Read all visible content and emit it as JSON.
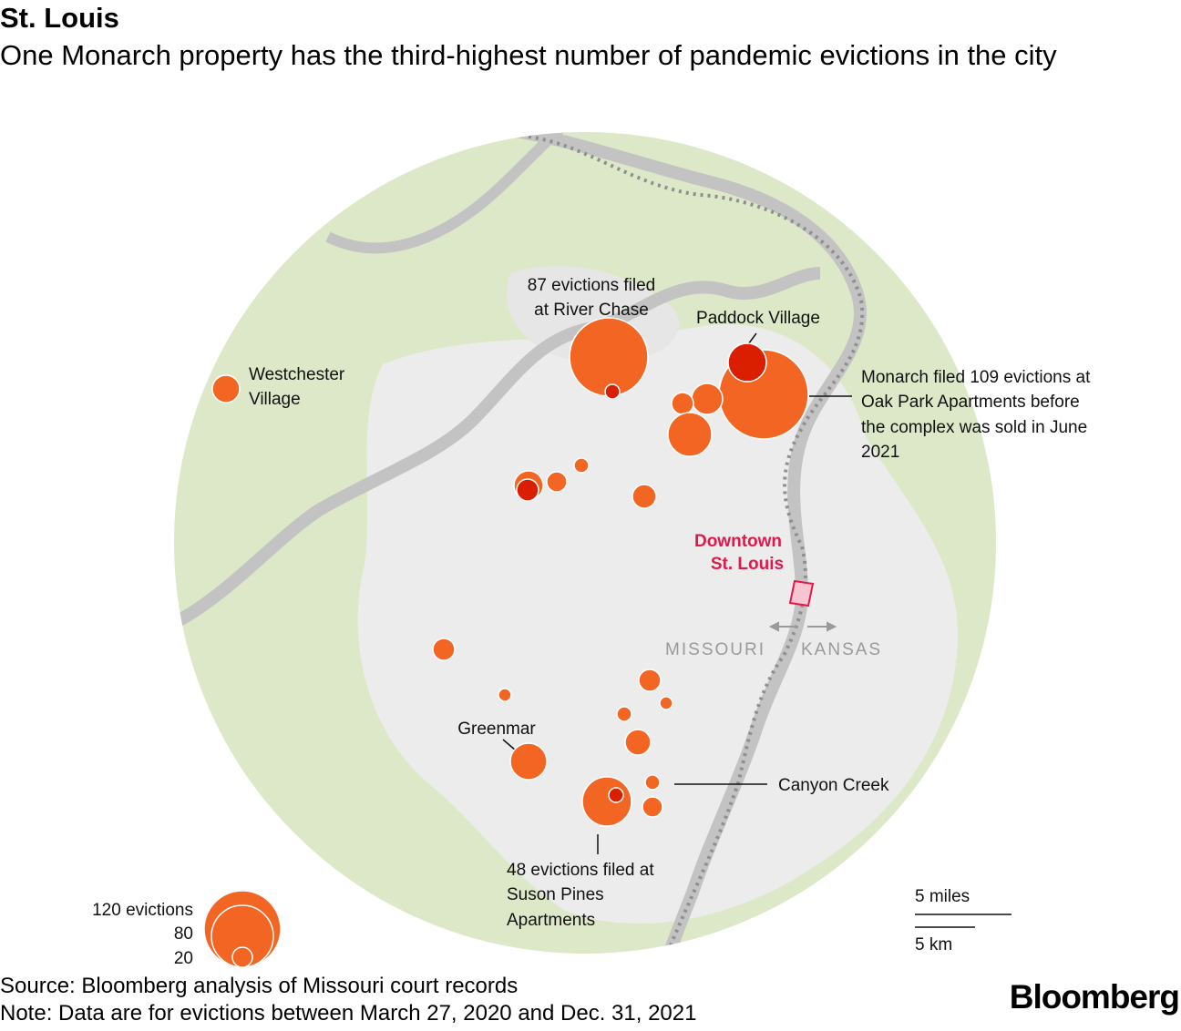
{
  "title": "St. Louis",
  "subtitle": "One Monarch property has the third-highest number of pandemic evictions in the city",
  "source": "Source: Bloomberg analysis of Missouri court records",
  "note": "Note: Data are for evictions between March 27, 2020 and Dec. 31, 2021",
  "logo": "Bloomberg",
  "colors": {
    "land": "#dde8c8",
    "urban": "#ececec",
    "river": "#c3c3c3",
    "bubble": "#f26522",
    "bubble_dark": "#d91f00",
    "downtown": "#e0184c"
  },
  "annotations": {
    "river_chase": [
      "87 evictions filed",
      "at River Chase"
    ],
    "paddock": "Paddock Village",
    "westchester": [
      "Westchester",
      "Village"
    ],
    "monarch": [
      "Monarch filed 109 evictions at",
      "Oak Park Apartments before",
      "the complex was sold in June",
      "2021"
    ],
    "downtown": [
      "Downtown",
      "St. Louis"
    ],
    "missouri": "MISSOURI",
    "kansas": "KANSAS",
    "greenmar": "Greenmar",
    "canyon": "Canyon Creek",
    "suson": [
      "48 evictions filed at",
      "Suson Pines",
      "Apartments"
    ]
  },
  "legend": {
    "l120": "120 evictions",
    "l80": "80",
    "l20": "20"
  },
  "scale": {
    "miles": "5 miles",
    "km": "5 km"
  }
}
